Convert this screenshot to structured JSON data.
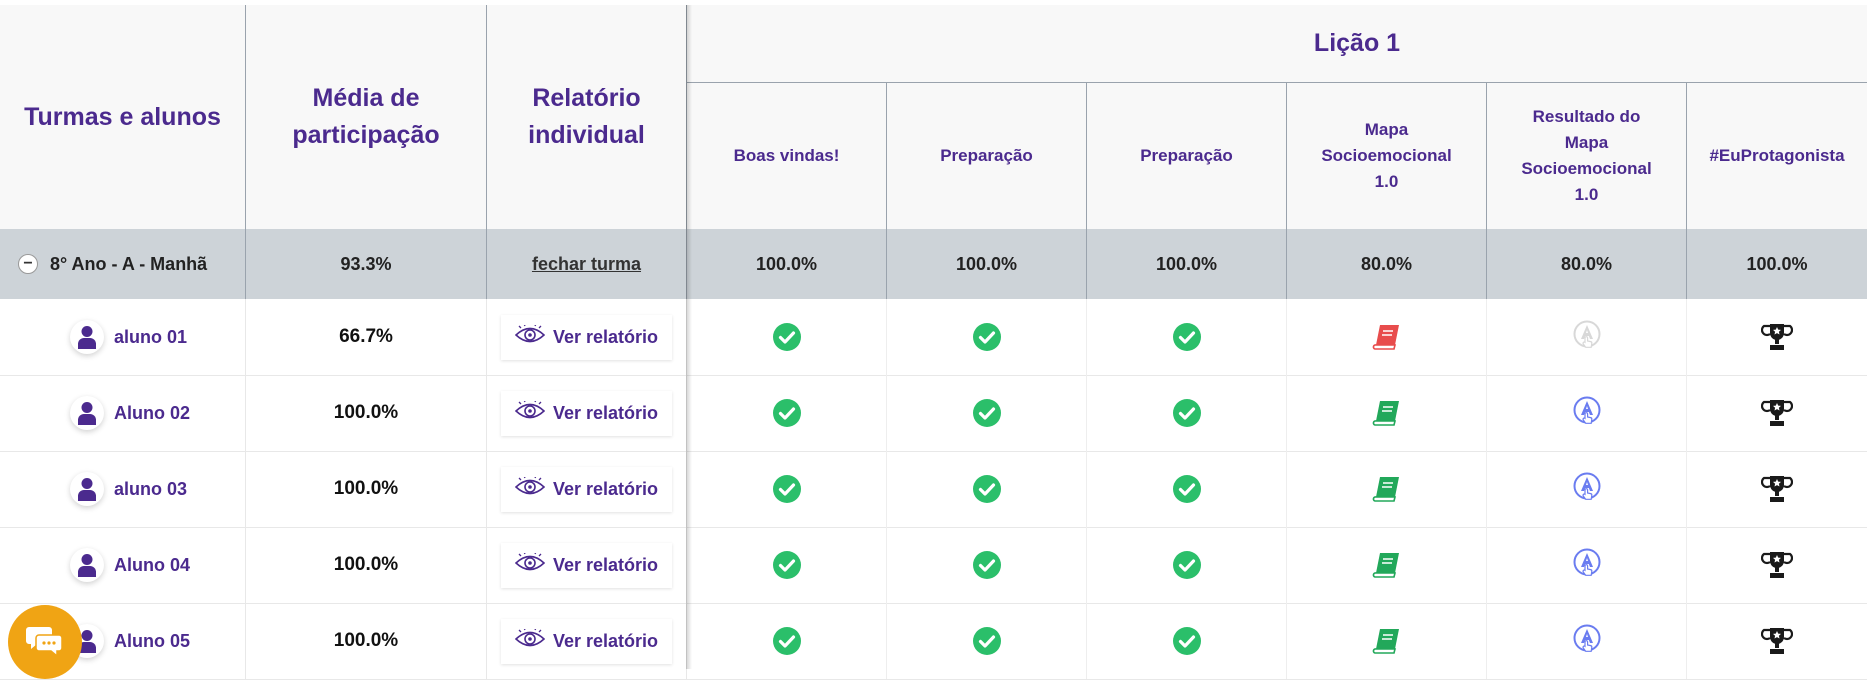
{
  "header": {
    "turmas_alunos": "Turmas e alunos",
    "media_line1": "Média de",
    "media_line2": "participação",
    "relatorio_line1": "Relatório",
    "relatorio_line2": "individual",
    "lesson_title": "Lição 1",
    "activities": [
      [
        "Boas vindas!"
      ],
      [
        "Preparação"
      ],
      [
        "Preparação"
      ],
      [
        "Mapa",
        "Socioemocional",
        "1.0"
      ],
      [
        "Resultado do",
        "Mapa",
        "Socioemocional",
        "1.0"
      ],
      [
        "#EuProtagonista"
      ]
    ]
  },
  "class_row": {
    "name": "8° Ano - A - Manhã",
    "collapse_symbol": "−",
    "media": "93.3%",
    "fechar_label": "fechar turma",
    "values": [
      "100.0%",
      "100.0%",
      "100.0%",
      "80.0%",
      "80.0%",
      "100.0%"
    ]
  },
  "students": [
    {
      "name": "aluno 01",
      "media": "66.7%",
      "ver_label": "Ver relatório",
      "status": [
        "check",
        "check",
        "check",
        "book-red",
        "result-disabled",
        "trophy"
      ]
    },
    {
      "name": "Aluno 02",
      "media": "100.0%",
      "ver_label": "Ver relatório",
      "status": [
        "check",
        "check",
        "check",
        "book-green",
        "result-active",
        "trophy"
      ]
    },
    {
      "name": "aluno 03",
      "media": "100.0%",
      "ver_label": "Ver relatório",
      "status": [
        "check",
        "check",
        "check",
        "book-green",
        "result-active",
        "trophy"
      ]
    },
    {
      "name": "Aluno 04",
      "media": "100.0%",
      "ver_label": "Ver relatório",
      "status": [
        "check",
        "check",
        "check",
        "book-green",
        "result-active",
        "trophy"
      ]
    },
    {
      "name": "Aluno 05",
      "media": "100.0%",
      "ver_label": "Ver relatório",
      "status": [
        "check",
        "check",
        "check",
        "book-green",
        "result-active",
        "trophy"
      ]
    }
  ],
  "colors": {
    "accent_purple": "#4b2a8e",
    "check_green": "#2bbf6a",
    "book_green": "#22a85a",
    "book_red": "#e84c4c",
    "result_blue": "#6a7cf0",
    "result_disabled": "#d8d8d8",
    "chat_orange": "#f0a414",
    "class_row_bg": "#cdd3d8"
  },
  "icons": {
    "student": "user-icon",
    "report": "eye-icon",
    "chat": "chat-icon"
  }
}
